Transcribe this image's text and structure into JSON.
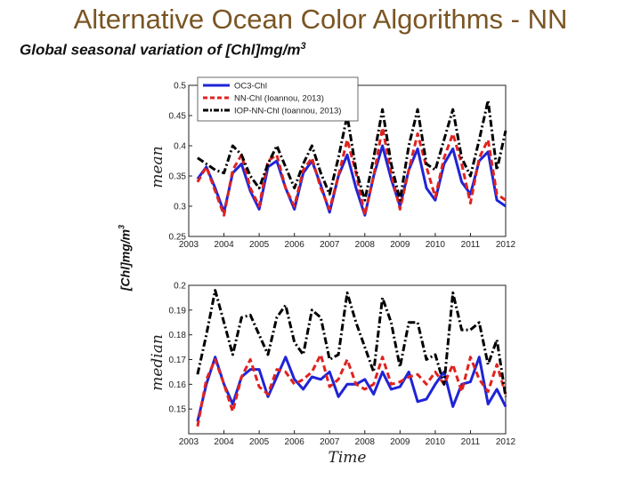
{
  "slide": {
    "title": "Alternative Ocean Color Algorithms - NN",
    "subtitle_main": "Global seasonal variation of [Chl]mg/m",
    "subtitle_sup": "3",
    "y_label_main": "[Chl]mg/m",
    "y_label_sup": "3"
  },
  "colors": {
    "OC3": "#1f24d6",
    "NN": "#e0221f",
    "IOP": "#000000"
  },
  "chart_data": [
    {
      "type": "line",
      "ylabel": "mean",
      "xlabel": "",
      "xlim": [
        2003,
        2012
      ],
      "ylim": [
        0.25,
        0.5
      ],
      "xticks": [
        2003,
        2004,
        2005,
        2006,
        2007,
        2008,
        2009,
        2010,
        2011,
        2012
      ],
      "yticks": [
        0.25,
        0.3,
        0.35,
        0.4,
        0.45,
        0.5
      ],
      "ytick_labels": [
        "0.25",
        "0.3",
        "0.35",
        "0.4",
        "0.45",
        "0.5"
      ],
      "legend": "top-left",
      "x": [
        2003.25,
        2003.5,
        2003.75,
        2004.0,
        2004.25,
        2004.5,
        2004.75,
        2005.0,
        2005.25,
        2005.5,
        2005.75,
        2006.0,
        2006.25,
        2006.5,
        2006.75,
        2007.0,
        2007.25,
        2007.5,
        2007.75,
        2008.0,
        2008.25,
        2008.5,
        2008.75,
        2009.0,
        2009.25,
        2009.5,
        2009.75,
        2010.0,
        2010.25,
        2010.5,
        2010.75,
        2011.0,
        2011.25,
        2011.5,
        2011.75,
        2012.0
      ],
      "series": [
        {
          "name": "OC3-Chl",
          "key": "OC3",
          "dash": "solid",
          "values": [
            0.345,
            0.365,
            0.33,
            0.29,
            0.355,
            0.37,
            0.325,
            0.295,
            0.365,
            0.375,
            0.33,
            0.295,
            0.355,
            0.375,
            0.335,
            0.29,
            0.35,
            0.385,
            0.33,
            0.285,
            0.35,
            0.4,
            0.345,
            0.3,
            0.36,
            0.395,
            0.33,
            0.31,
            0.37,
            0.395,
            0.34,
            0.32,
            0.375,
            0.39,
            0.31,
            0.3
          ]
        },
        {
          "name": "NN-Chl (Ioannou, 2013)",
          "key": "NN",
          "dash": "dashed",
          "values": [
            0.34,
            0.365,
            0.325,
            0.285,
            0.36,
            0.385,
            0.33,
            0.3,
            0.375,
            0.385,
            0.33,
            0.3,
            0.36,
            0.38,
            0.33,
            0.295,
            0.35,
            0.41,
            0.355,
            0.285,
            0.35,
            0.43,
            0.355,
            0.295,
            0.36,
            0.42,
            0.365,
            0.315,
            0.38,
            0.42,
            0.37,
            0.305,
            0.38,
            0.41,
            0.32,
            0.31
          ]
        },
        {
          "name": "IOP-NN-Chl (Ioannou, 2013)",
          "key": "IOP",
          "dash": "dashdot",
          "values": [
            0.38,
            0.37,
            0.36,
            0.355,
            0.4,
            0.385,
            0.35,
            0.33,
            0.37,
            0.4,
            0.365,
            0.33,
            0.37,
            0.4,
            0.355,
            0.32,
            0.38,
            0.45,
            0.36,
            0.31,
            0.38,
            0.46,
            0.37,
            0.31,
            0.4,
            0.46,
            0.37,
            0.36,
            0.41,
            0.46,
            0.38,
            0.35,
            0.41,
            0.475,
            0.36,
            0.425
          ]
        }
      ]
    },
    {
      "type": "line",
      "ylabel": "median",
      "xlabel": "Time",
      "xlim": [
        2003,
        2012
      ],
      "ylim": [
        0.14,
        0.2
      ],
      "xticks": [
        2003,
        2004,
        2005,
        2006,
        2007,
        2008,
        2009,
        2010,
        2011,
        2012
      ],
      "yticks": [
        0.15,
        0.16,
        0.17,
        0.18,
        0.19,
        0.2
      ],
      "ytick_labels": [
        "0.15",
        "0.16",
        "0.17",
        "0.18",
        "0.19",
        "0.2"
      ],
      "x": [
        2003.25,
        2003.5,
        2003.75,
        2004.0,
        2004.25,
        2004.5,
        2004.75,
        2005.0,
        2005.25,
        2005.5,
        2005.75,
        2006.0,
        2006.25,
        2006.5,
        2006.75,
        2007.0,
        2007.25,
        2007.5,
        2007.75,
        2008.0,
        2008.25,
        2008.5,
        2008.75,
        2009.0,
        2009.25,
        2009.5,
        2009.75,
        2010.0,
        2010.25,
        2010.5,
        2010.75,
        2011.0,
        2011.25,
        2011.5,
        2011.75,
        2012.0
      ],
      "series": [
        {
          "name": "OC3-Chl",
          "key": "OC3",
          "dash": "solid",
          "values": [
            0.145,
            0.16,
            0.171,
            0.16,
            0.152,
            0.163,
            0.166,
            0.166,
            0.155,
            0.163,
            0.171,
            0.162,
            0.158,
            0.163,
            0.162,
            0.165,
            0.155,
            0.16,
            0.16,
            0.162,
            0.156,
            0.165,
            0.158,
            0.159,
            0.165,
            0.153,
            0.154,
            0.16,
            0.165,
            0.151,
            0.16,
            0.161,
            0.171,
            0.152,
            0.158,
            0.151
          ]
        },
        {
          "name": "NN-Chl (Ioannou, 2013)",
          "key": "NN",
          "dash": "dashed",
          "values": [
            0.143,
            0.162,
            0.17,
            0.16,
            0.149,
            0.163,
            0.17,
            0.159,
            0.156,
            0.166,
            0.165,
            0.16,
            0.162,
            0.165,
            0.172,
            0.159,
            0.162,
            0.17,
            0.16,
            0.158,
            0.16,
            0.171,
            0.16,
            0.161,
            0.163,
            0.164,
            0.16,
            0.165,
            0.16,
            0.168,
            0.157,
            0.171,
            0.162,
            0.157,
            0.168,
            0.156
          ]
        },
        {
          "name": "IOP-NN-Chl (Ioannou, 2013)",
          "key": "IOP",
          "dash": "dashdot",
          "values": [
            0.164,
            0.18,
            0.198,
            0.185,
            0.172,
            0.187,
            0.188,
            0.18,
            0.172,
            0.187,
            0.192,
            0.177,
            0.172,
            0.19,
            0.187,
            0.17,
            0.172,
            0.197,
            0.185,
            0.175,
            0.165,
            0.195,
            0.185,
            0.167,
            0.185,
            0.185,
            0.17,
            0.172,
            0.16,
            0.197,
            0.182,
            0.182,
            0.185,
            0.168,
            0.178,
            0.155
          ]
        }
      ]
    }
  ]
}
